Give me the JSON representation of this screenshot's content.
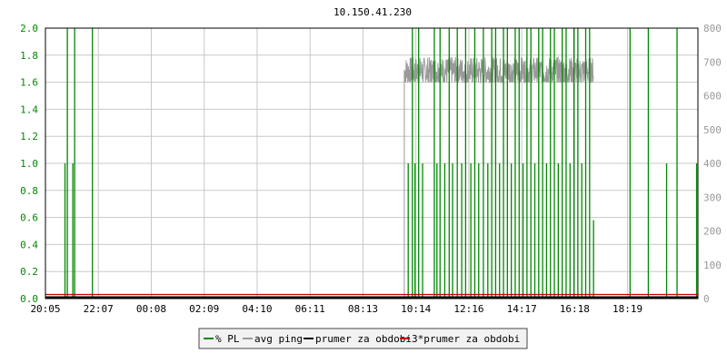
{
  "chart_data": {
    "type": "line",
    "title": "10.150.41.230",
    "x_ticks": [
      "20:05",
      "22:07",
      "00:08",
      "02:09",
      "04:10",
      "06:11",
      "08:13",
      "10:14",
      "12:16",
      "14:17",
      "16:18",
      "18:19"
    ],
    "y_left": {
      "min": 0,
      "max": 2.0,
      "ticks": [
        "0.0",
        "0.2",
        "0.4",
        "0.6",
        "0.8",
        "1.0",
        "1.2",
        "1.4",
        "1.6",
        "1.8",
        "2.0"
      ]
    },
    "y_right": {
      "min": 0,
      "max": 800,
      "ticks": [
        "0",
        "100",
        "200",
        "300",
        "400",
        "500",
        "600",
        "700",
        "800"
      ]
    },
    "grid": true,
    "legend_position": "bottom-center",
    "series": [
      {
        "name": "% PL",
        "color": "#008800",
        "axis": "left",
        "note_x": "hours since 20:05",
        "spikes": [
          [
            0.75,
            1
          ],
          [
            0.84,
            2
          ],
          [
            1.05,
            1
          ],
          [
            1.12,
            2
          ],
          [
            1.8,
            2
          ],
          [
            13.9,
            1
          ],
          [
            14.06,
            2
          ],
          [
            14.16,
            1
          ],
          [
            14.3,
            2
          ],
          [
            14.45,
            1
          ],
          [
            14.9,
            2
          ],
          [
            15.0,
            1
          ],
          [
            15.12,
            2
          ],
          [
            15.3,
            1
          ],
          [
            15.47,
            2
          ],
          [
            15.6,
            1
          ],
          [
            15.78,
            2
          ],
          [
            15.95,
            1
          ],
          [
            16.1,
            2
          ],
          [
            16.3,
            1
          ],
          [
            16.45,
            2
          ],
          [
            16.6,
            1
          ],
          [
            16.78,
            2
          ],
          [
            16.95,
            1
          ],
          [
            17.1,
            2
          ],
          [
            17.25,
            2
          ],
          [
            17.4,
            1
          ],
          [
            17.55,
            2
          ],
          [
            17.7,
            2
          ],
          [
            17.85,
            1
          ],
          [
            18.0,
            2
          ],
          [
            18.15,
            2
          ],
          [
            18.3,
            1
          ],
          [
            18.45,
            2
          ],
          [
            18.6,
            2
          ],
          [
            18.75,
            1
          ],
          [
            18.9,
            2
          ],
          [
            19.05,
            2
          ],
          [
            19.2,
            1
          ],
          [
            19.35,
            2
          ],
          [
            19.5,
            2
          ],
          [
            19.65,
            1
          ],
          [
            19.8,
            2
          ],
          [
            19.95,
            2
          ],
          [
            20.1,
            1
          ],
          [
            20.25,
            2
          ],
          [
            20.4,
            2
          ],
          [
            20.55,
            1
          ],
          [
            20.7,
            2
          ],
          [
            20.85,
            2
          ],
          [
            21.0,
            0.58
          ],
          [
            22.4,
            2
          ],
          [
            23.1,
            2
          ],
          [
            23.8,
            1
          ],
          [
            24.2,
            2
          ],
          [
            24.95,
            1
          ]
        ]
      },
      {
        "name": "avg ping",
        "color": "#999999",
        "axis": "right",
        "start_hour": 13.75,
        "end_hour": 21.0,
        "mean": 672,
        "min": 640,
        "max": 715
      },
      {
        "name": "prumer za obdobi",
        "color": "#000000",
        "axis": "left",
        "value": 0.01
      },
      {
        "name": "3*prumer za obdobi",
        "color": "#cc0000",
        "axis": "left",
        "value": 0.03
      }
    ]
  }
}
